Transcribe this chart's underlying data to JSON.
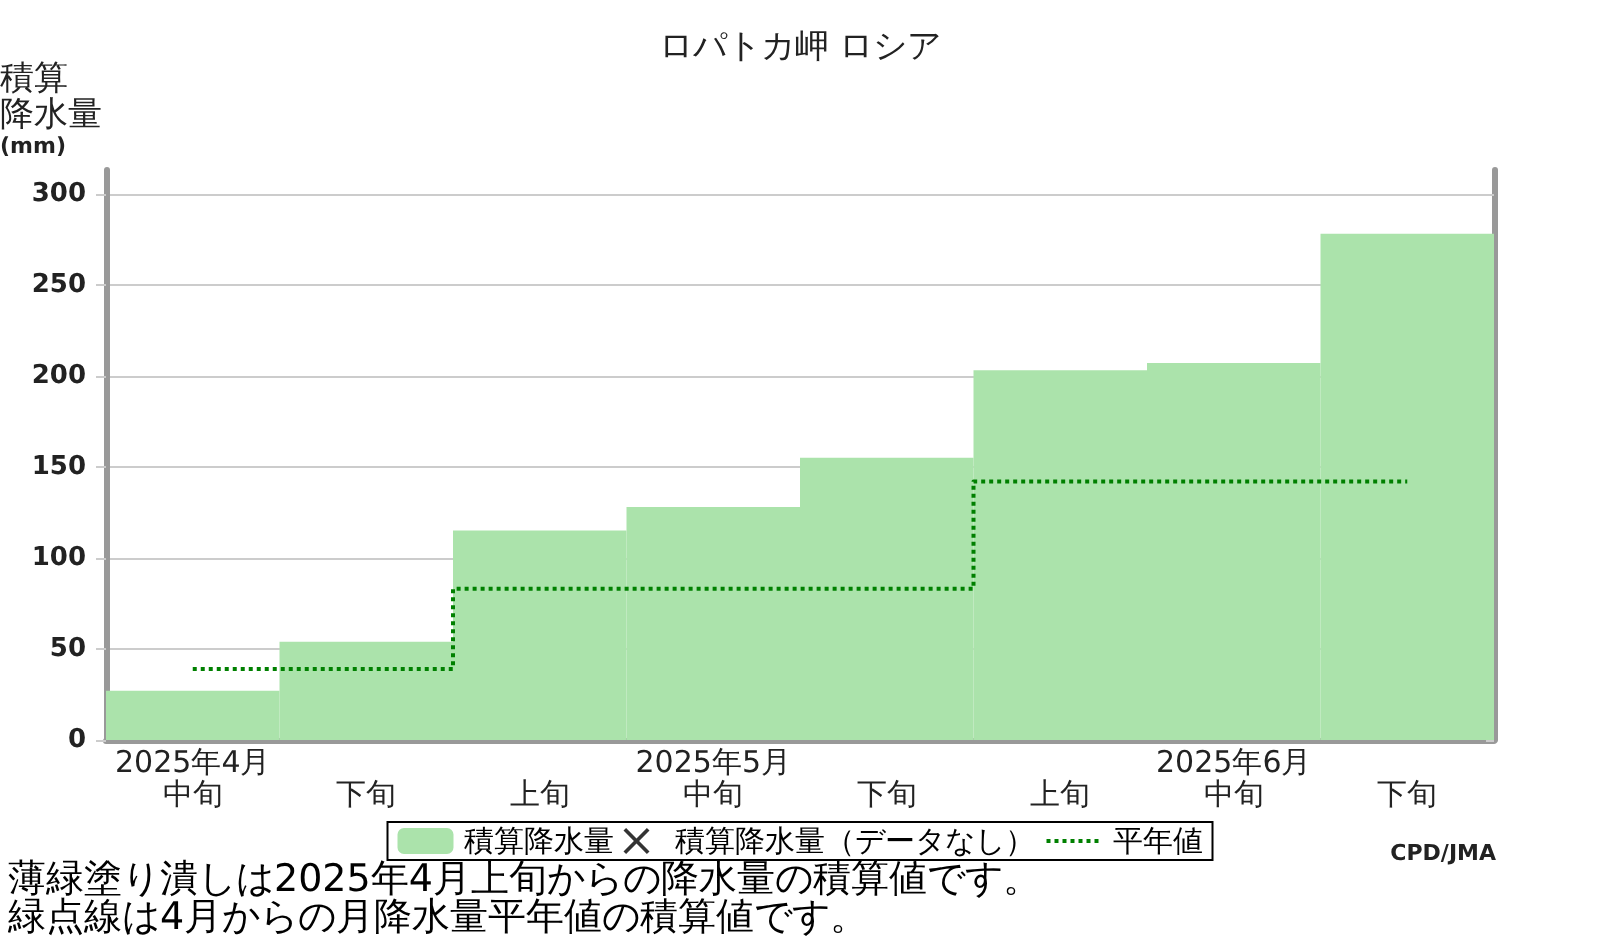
{
  "chart_data": {
    "type": "bar",
    "title": "ロパトカ岬 ロシア",
    "ylabel": "積算降水量(mm)",
    "categories": [
      "2025年4月中旬",
      "下旬",
      "上旬",
      "2025年5月中旬",
      "下旬",
      "上旬",
      "2025年6月中旬",
      "下旬"
    ],
    "series": [
      {
        "name": "積算降水量",
        "color": "#abe3ab",
        "values": [
          27,
          54,
          115,
          128,
          155,
          203,
          207,
          278
        ]
      },
      {
        "name": "積算降水量（データなし）",
        "type": "scatter",
        "marker": "cross",
        "color": "#000000",
        "values": [
          null,
          null,
          null,
          null,
          null,
          null,
          null,
          null
        ]
      },
      {
        "name": "平年値",
        "type": "step",
        "color": "#008000",
        "line_style": "dotted",
        "values": [
          39,
          39,
          83,
          83,
          83,
          142,
          142,
          142
        ]
      }
    ],
    "ylim": [
      0,
      313
    ],
    "yticks": [
      0,
      50,
      100,
      150,
      200,
      250,
      300
    ],
    "grid": "y",
    "legend": "bottom",
    "annotations": [
      "薄緑塗り潰しは2025年4月上旬からの降水量の積算値です。",
      "緑点線は4月からの月降水量平年値の積算値です。",
      "CPD/JMA"
    ]
  }
}
